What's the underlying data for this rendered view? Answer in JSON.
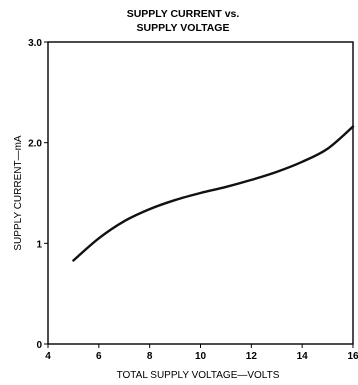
{
  "chart_data": {
    "type": "line",
    "title_line1": "SUPPLY CURRENT vs.",
    "title_line2": "SUPPLY VOLTAGE",
    "xlabel": "TOTAL SUPPLY VOLTAGE—VOLTS",
    "ylabel": "SUPPLY CURRENT—mA",
    "xlim": [
      4,
      16
    ],
    "ylim": [
      0,
      3.0
    ],
    "x_ticks": [
      {
        "value": 4,
        "label": "4"
      },
      {
        "value": 6,
        "label": "6"
      },
      {
        "value": 8,
        "label": "8"
      },
      {
        "value": 10,
        "label": "10"
      },
      {
        "value": 12,
        "label": "12"
      },
      {
        "value": 14,
        "label": "14"
      },
      {
        "value": 16,
        "label": "16"
      }
    ],
    "y_ticks": [
      {
        "value": 0,
        "label": "0"
      },
      {
        "value": 1,
        "label": "1"
      },
      {
        "value": 2,
        "label": "2.0"
      },
      {
        "value": 3,
        "label": "3.0"
      }
    ],
    "grid": false,
    "series": [
      {
        "x": [
          5,
          6,
          7,
          8,
          9,
          10,
          11,
          12,
          13,
          14,
          15,
          16
        ],
        "y": [
          0.83,
          1.05,
          1.22,
          1.34,
          1.43,
          1.5,
          1.56,
          1.63,
          1.71,
          1.81,
          1.94,
          2.16
        ]
      }
    ],
    "colors": {
      "line": "#111111",
      "axis": "#000000"
    }
  }
}
